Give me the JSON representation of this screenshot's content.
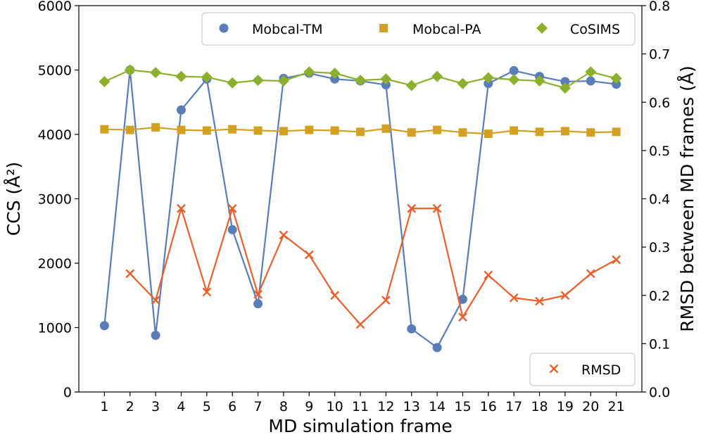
{
  "chart_data": {
    "type": "line",
    "xlabel": "MD simulation frame",
    "ylabel_left": "CCS (Å²)",
    "ylabel_right": "RMSD between MD frames (Å)",
    "x": [
      1,
      2,
      3,
      4,
      5,
      6,
      7,
      8,
      9,
      10,
      11,
      12,
      13,
      14,
      15,
      16,
      17,
      18,
      19,
      20,
      21
    ],
    "xticks": [
      "1",
      "2",
      "3",
      "4",
      "5",
      "6",
      "7",
      "8",
      "9",
      "10",
      "11",
      "12",
      "13",
      "14",
      "15",
      "16",
      "17",
      "18",
      "19",
      "20",
      "21"
    ],
    "xlim": [
      0,
      22
    ],
    "ylim_left": [
      0,
      6000
    ],
    "yticks_left": [
      "0",
      "1000",
      "2000",
      "3000",
      "4000",
      "5000",
      "6000"
    ],
    "ylim_right": [
      0,
      0.8
    ],
    "yticks_right": [
      "0.0",
      "0.1",
      "0.2",
      "0.3",
      "0.4",
      "0.5",
      "0.6",
      "0.7",
      "0.8"
    ],
    "legend_top": {
      "placement": "top-right"
    },
    "legend_bottom": {
      "placement": "bottom-right"
    },
    "series": [
      {
        "name": "Mobcal-TM",
        "axis": "left",
        "marker": "circle",
        "color": "#5a7db8",
        "x": [
          1,
          2,
          3,
          4,
          5,
          6,
          7,
          8,
          9,
          10,
          11,
          12,
          13,
          14,
          15,
          16,
          17,
          18,
          19,
          20,
          21
        ],
        "values": [
          1030,
          5000,
          880,
          4380,
          4860,
          2520,
          1370,
          4870,
          4950,
          4860,
          4830,
          4770,
          980,
          690,
          1440,
          4790,
          4990,
          4900,
          4820,
          4830,
          4780
        ]
      },
      {
        "name": "Mobcal-PA",
        "axis": "left",
        "marker": "square",
        "color": "#d4a022",
        "x": [
          1,
          2,
          3,
          4,
          5,
          6,
          7,
          8,
          9,
          10,
          11,
          12,
          13,
          14,
          15,
          16,
          17,
          18,
          19,
          20,
          21
        ],
        "values": [
          4080,
          4070,
          4110,
          4070,
          4060,
          4080,
          4060,
          4050,
          4070,
          4060,
          4040,
          4090,
          4030,
          4070,
          4030,
          4010,
          4060,
          4040,
          4050,
          4030,
          4040
        ]
      },
      {
        "name": "CoSIMS",
        "axis": "left",
        "marker": "diamond",
        "color": "#8cb02c",
        "x": [
          1,
          2,
          3,
          4,
          5,
          6,
          7,
          8,
          9,
          10,
          11,
          12,
          13,
          14,
          15,
          16,
          17,
          18,
          19,
          20,
          21
        ],
        "values": [
          4820,
          5000,
          4960,
          4900,
          4890,
          4800,
          4840,
          4830,
          4970,
          4950,
          4840,
          4860,
          4760,
          4900,
          4790,
          4880,
          4850,
          4830,
          4720,
          4970,
          4870
        ]
      },
      {
        "name": "RMSD",
        "axis": "right",
        "marker": "x",
        "color": "#e8602c",
        "x": [
          2,
          3,
          4,
          5,
          6,
          7,
          8,
          9,
          10,
          11,
          12,
          13,
          14,
          15,
          16,
          17,
          18,
          19,
          20,
          21
        ],
        "values": [
          0.245,
          0.19,
          0.38,
          0.207,
          0.38,
          0.202,
          0.325,
          0.284,
          0.2,
          0.14,
          0.19,
          0.38,
          0.38,
          0.155,
          0.242,
          0.195,
          0.188,
          0.2,
          0.245,
          0.274
        ]
      }
    ]
  }
}
